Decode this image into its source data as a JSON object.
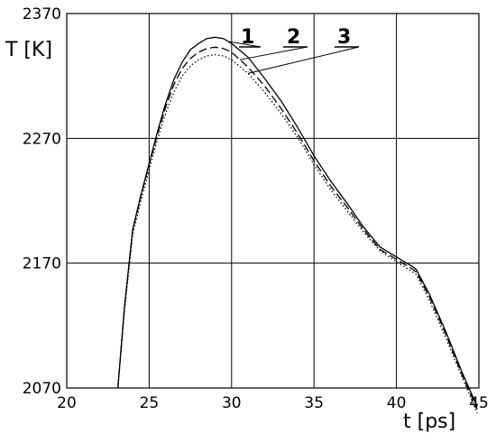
{
  "chart_data": {
    "type": "line",
    "title": "",
    "xlabel": "t [ps]",
    "ylabel": "T [K]",
    "xlim": [
      20,
      45
    ],
    "ylim": [
      2070,
      2370
    ],
    "xticks": [
      20,
      25,
      30,
      35,
      40,
      45
    ],
    "yticks": [
      2070,
      2170,
      2270,
      2370
    ],
    "grid": true,
    "legend": "numbered leader-line labels at top",
    "series": [
      {
        "name": "1",
        "style": "solid",
        "x": [
          23.1,
          23.5,
          24.0,
          24.5,
          25.0,
          25.5,
          26.0,
          26.5,
          27.0,
          27.5,
          28.0,
          28.5,
          29.0,
          29.5,
          30.0,
          31.0,
          32.0,
          33.0,
          34.0,
          35.0,
          36.0,
          37.0,
          38.0,
          39.0,
          40.0,
          41.0,
          41.2,
          42.0,
          43.0,
          44.0,
          44.9
        ],
        "y": [
          2070,
          2135,
          2197,
          2225,
          2250,
          2275,
          2298,
          2317,
          2331,
          2341,
          2346,
          2350,
          2351,
          2350,
          2346,
          2335,
          2318,
          2300,
          2279,
          2256,
          2236,
          2218,
          2199,
          2183,
          2175,
          2167,
          2165,
          2145,
          2115,
          2082,
          2055
        ]
      },
      {
        "name": "2",
        "style": "dashed",
        "x": [
          23.1,
          23.5,
          24.0,
          24.5,
          25.0,
          25.5,
          26.0,
          26.5,
          27.0,
          27.5,
          28.0,
          28.5,
          29.0,
          29.5,
          30.0,
          31.0,
          32.0,
          33.0,
          34.0,
          35.0,
          36.0,
          37.0,
          38.0,
          39.0,
          40.0,
          41.0,
          41.2,
          42.0,
          43.0,
          44.0,
          44.9
        ],
        "y": [
          2070,
          2134,
          2196,
          2224,
          2249,
          2273,
          2295,
          2313,
          2326,
          2334,
          2339,
          2342,
          2343,
          2342,
          2339,
          2327,
          2312,
          2294,
          2274,
          2252,
          2232,
          2215,
          2197,
          2181,
          2173,
          2165,
          2163,
          2143,
          2113,
          2080,
          2053
        ]
      },
      {
        "name": "3",
        "style": "dotted",
        "x": [
          23.1,
          23.5,
          24.0,
          24.5,
          25.0,
          25.5,
          26.0,
          26.5,
          27.0,
          27.5,
          28.0,
          28.5,
          29.0,
          29.5,
          30.0,
          31.0,
          32.0,
          33.0,
          34.0,
          35.0,
          36.0,
          37.0,
          38.0,
          39.0,
          40.0,
          41.0,
          41.2,
          42.0,
          43.0,
          44.0,
          44.9
        ],
        "y": [
          2070,
          2132,
          2193,
          2220,
          2245,
          2269,
          2290,
          2307,
          2320,
          2328,
          2333,
          2336,
          2337,
          2336,
          2333,
          2322,
          2307,
          2290,
          2271,
          2249,
          2229,
          2212,
          2195,
          2180,
          2171,
          2163,
          2161,
          2140,
          2110,
          2078,
          2050
        ]
      }
    ]
  }
}
